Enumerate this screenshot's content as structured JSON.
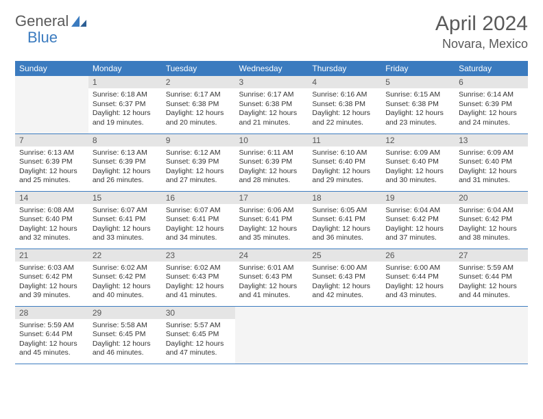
{
  "brand": {
    "part1": "General",
    "part2": "Blue"
  },
  "title": "April 2024",
  "location": "Novara, Mexico",
  "colors": {
    "headerBg": "#3b7bbf",
    "headerText": "#ffffff",
    "dayNumBg": "#e5e5e5",
    "text": "#333333",
    "emptyBg": "#f4f4f4"
  },
  "weekdays": [
    "Sunday",
    "Monday",
    "Tuesday",
    "Wednesday",
    "Thursday",
    "Friday",
    "Saturday"
  ],
  "grid": [
    [
      null,
      {
        "num": "1",
        "sunrise": "Sunrise: 6:18 AM",
        "sunset": "Sunset: 6:37 PM",
        "daylight": "Daylight: 12 hours and 19 minutes."
      },
      {
        "num": "2",
        "sunrise": "Sunrise: 6:17 AM",
        "sunset": "Sunset: 6:38 PM",
        "daylight": "Daylight: 12 hours and 20 minutes."
      },
      {
        "num": "3",
        "sunrise": "Sunrise: 6:17 AM",
        "sunset": "Sunset: 6:38 PM",
        "daylight": "Daylight: 12 hours and 21 minutes."
      },
      {
        "num": "4",
        "sunrise": "Sunrise: 6:16 AM",
        "sunset": "Sunset: 6:38 PM",
        "daylight": "Daylight: 12 hours and 22 minutes."
      },
      {
        "num": "5",
        "sunrise": "Sunrise: 6:15 AM",
        "sunset": "Sunset: 6:38 PM",
        "daylight": "Daylight: 12 hours and 23 minutes."
      },
      {
        "num": "6",
        "sunrise": "Sunrise: 6:14 AM",
        "sunset": "Sunset: 6:39 PM",
        "daylight": "Daylight: 12 hours and 24 minutes."
      }
    ],
    [
      {
        "num": "7",
        "sunrise": "Sunrise: 6:13 AM",
        "sunset": "Sunset: 6:39 PM",
        "daylight": "Daylight: 12 hours and 25 minutes."
      },
      {
        "num": "8",
        "sunrise": "Sunrise: 6:13 AM",
        "sunset": "Sunset: 6:39 PM",
        "daylight": "Daylight: 12 hours and 26 minutes."
      },
      {
        "num": "9",
        "sunrise": "Sunrise: 6:12 AM",
        "sunset": "Sunset: 6:39 PM",
        "daylight": "Daylight: 12 hours and 27 minutes."
      },
      {
        "num": "10",
        "sunrise": "Sunrise: 6:11 AM",
        "sunset": "Sunset: 6:39 PM",
        "daylight": "Daylight: 12 hours and 28 minutes."
      },
      {
        "num": "11",
        "sunrise": "Sunrise: 6:10 AM",
        "sunset": "Sunset: 6:40 PM",
        "daylight": "Daylight: 12 hours and 29 minutes."
      },
      {
        "num": "12",
        "sunrise": "Sunrise: 6:09 AM",
        "sunset": "Sunset: 6:40 PM",
        "daylight": "Daylight: 12 hours and 30 minutes."
      },
      {
        "num": "13",
        "sunrise": "Sunrise: 6:09 AM",
        "sunset": "Sunset: 6:40 PM",
        "daylight": "Daylight: 12 hours and 31 minutes."
      }
    ],
    [
      {
        "num": "14",
        "sunrise": "Sunrise: 6:08 AM",
        "sunset": "Sunset: 6:40 PM",
        "daylight": "Daylight: 12 hours and 32 minutes."
      },
      {
        "num": "15",
        "sunrise": "Sunrise: 6:07 AM",
        "sunset": "Sunset: 6:41 PM",
        "daylight": "Daylight: 12 hours and 33 minutes."
      },
      {
        "num": "16",
        "sunrise": "Sunrise: 6:07 AM",
        "sunset": "Sunset: 6:41 PM",
        "daylight": "Daylight: 12 hours and 34 minutes."
      },
      {
        "num": "17",
        "sunrise": "Sunrise: 6:06 AM",
        "sunset": "Sunset: 6:41 PM",
        "daylight": "Daylight: 12 hours and 35 minutes."
      },
      {
        "num": "18",
        "sunrise": "Sunrise: 6:05 AM",
        "sunset": "Sunset: 6:41 PM",
        "daylight": "Daylight: 12 hours and 36 minutes."
      },
      {
        "num": "19",
        "sunrise": "Sunrise: 6:04 AM",
        "sunset": "Sunset: 6:42 PM",
        "daylight": "Daylight: 12 hours and 37 minutes."
      },
      {
        "num": "20",
        "sunrise": "Sunrise: 6:04 AM",
        "sunset": "Sunset: 6:42 PM",
        "daylight": "Daylight: 12 hours and 38 minutes."
      }
    ],
    [
      {
        "num": "21",
        "sunrise": "Sunrise: 6:03 AM",
        "sunset": "Sunset: 6:42 PM",
        "daylight": "Daylight: 12 hours and 39 minutes."
      },
      {
        "num": "22",
        "sunrise": "Sunrise: 6:02 AM",
        "sunset": "Sunset: 6:42 PM",
        "daylight": "Daylight: 12 hours and 40 minutes."
      },
      {
        "num": "23",
        "sunrise": "Sunrise: 6:02 AM",
        "sunset": "Sunset: 6:43 PM",
        "daylight": "Daylight: 12 hours and 41 minutes."
      },
      {
        "num": "24",
        "sunrise": "Sunrise: 6:01 AM",
        "sunset": "Sunset: 6:43 PM",
        "daylight": "Daylight: 12 hours and 41 minutes."
      },
      {
        "num": "25",
        "sunrise": "Sunrise: 6:00 AM",
        "sunset": "Sunset: 6:43 PM",
        "daylight": "Daylight: 12 hours and 42 minutes."
      },
      {
        "num": "26",
        "sunrise": "Sunrise: 6:00 AM",
        "sunset": "Sunset: 6:44 PM",
        "daylight": "Daylight: 12 hours and 43 minutes."
      },
      {
        "num": "27",
        "sunrise": "Sunrise: 5:59 AM",
        "sunset": "Sunset: 6:44 PM",
        "daylight": "Daylight: 12 hours and 44 minutes."
      }
    ],
    [
      {
        "num": "28",
        "sunrise": "Sunrise: 5:59 AM",
        "sunset": "Sunset: 6:44 PM",
        "daylight": "Daylight: 12 hours and 45 minutes."
      },
      {
        "num": "29",
        "sunrise": "Sunrise: 5:58 AM",
        "sunset": "Sunset: 6:45 PM",
        "daylight": "Daylight: 12 hours and 46 minutes."
      },
      {
        "num": "30",
        "sunrise": "Sunrise: 5:57 AM",
        "sunset": "Sunset: 6:45 PM",
        "daylight": "Daylight: 12 hours and 47 minutes."
      },
      null,
      null,
      null,
      null
    ]
  ]
}
